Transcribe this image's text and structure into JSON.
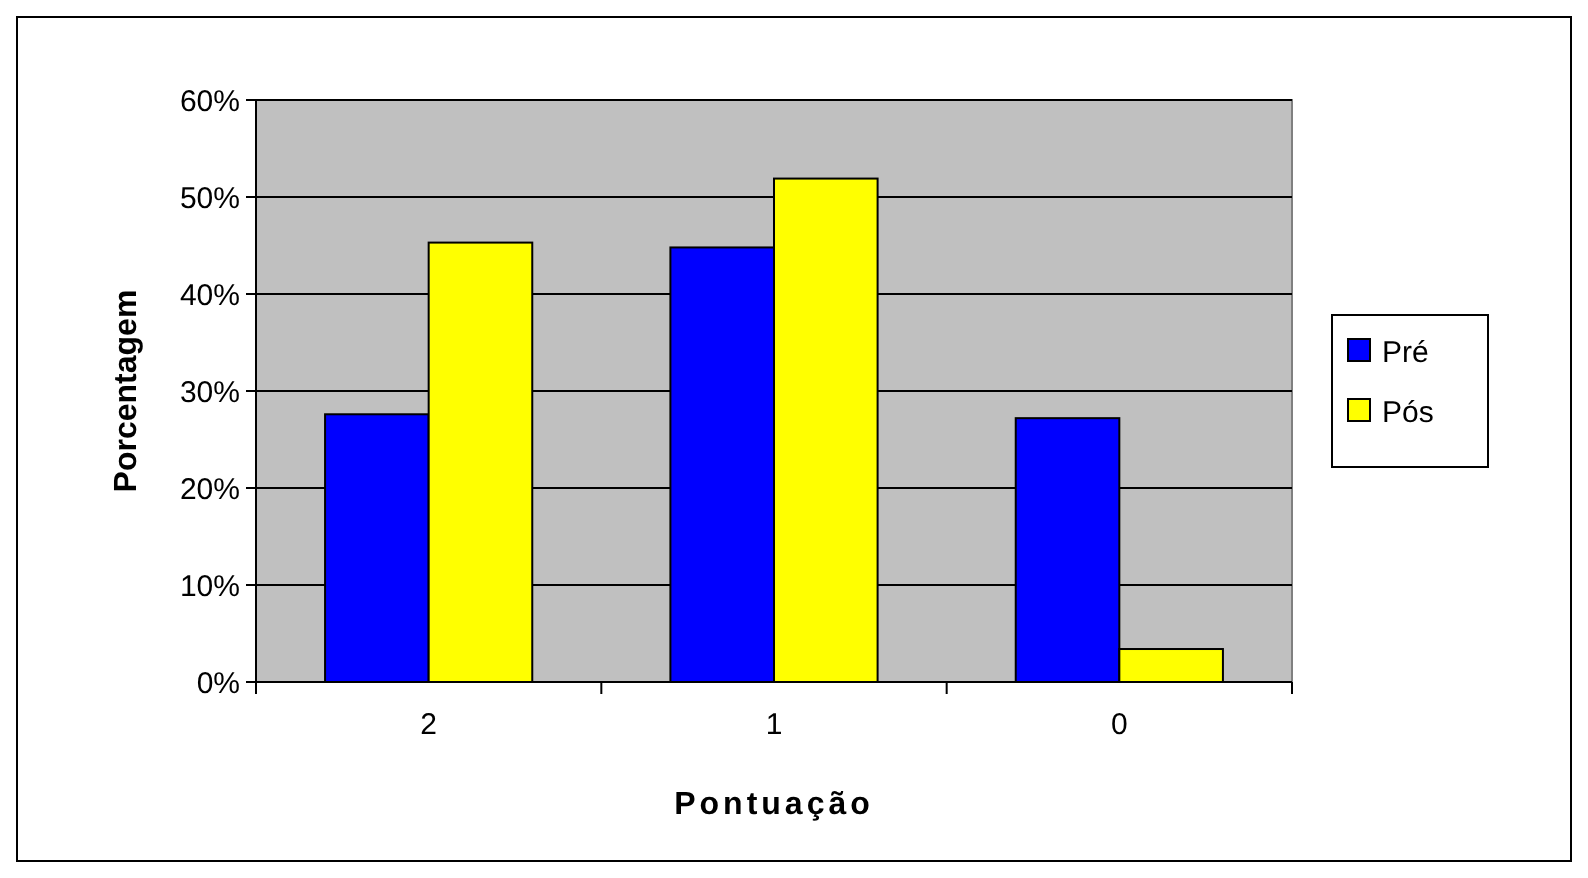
{
  "chart_data": {
    "type": "bar",
    "xlabel": "Pontuação",
    "ylabel": "Porcentagem",
    "categories": [
      "2",
      "1",
      "0"
    ],
    "series": [
      {
        "name": "Pré",
        "color": "#0000ff",
        "values": [
          27.6,
          44.8,
          27.2
        ]
      },
      {
        "name": "Pós",
        "color": "#ffff00",
        "values": [
          45.3,
          51.9,
          3.4
        ]
      }
    ],
    "ylim": [
      0,
      60
    ],
    "yticks": [
      {
        "value": 0,
        "label": "0%"
      },
      {
        "value": 10,
        "label": "10%"
      },
      {
        "value": 20,
        "label": "20%"
      },
      {
        "value": 30,
        "label": "30%"
      },
      {
        "value": 40,
        "label": "40%"
      },
      {
        "value": 50,
        "label": "50%"
      },
      {
        "value": 60,
        "label": "60%"
      }
    ],
    "grid": "y",
    "legend": "right"
  }
}
